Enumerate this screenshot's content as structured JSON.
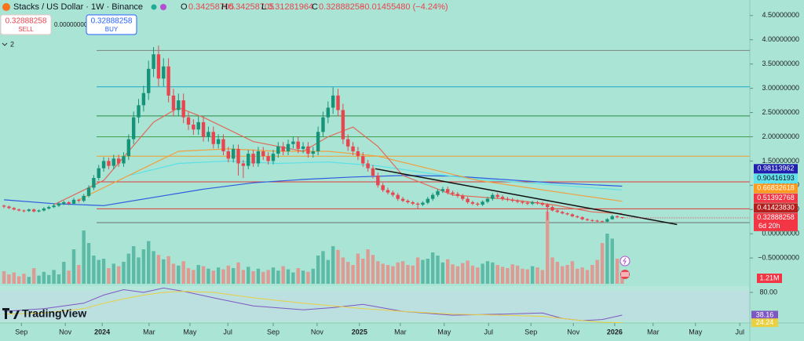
{
  "header": {
    "symbol": "Stacks / US Dollar · 1W · Binance",
    "ohlc_keys": [
      "O",
      "H",
      "L",
      "C"
    ],
    "change": "−0.01455480 (−4.24%)",
    "sell_price": "0.32888258",
    "sell_label": "SELL",
    "spread": "0.00000000",
    "buy_price": "0.32888258",
    "buy_label": "BUY",
    "indicator_count": "2",
    "logo": "TradingView"
  },
  "chart_data": {
    "type": "candlestick",
    "candles": [
      [
        0.58,
        0.6,
        0.53,
        0.56
      ],
      [
        0.56,
        0.58,
        0.51,
        0.53
      ],
      [
        0.53,
        0.55,
        0.48,
        0.5
      ],
      [
        0.5,
        0.52,
        0.46,
        0.48
      ],
      [
        0.48,
        0.5,
        0.44,
        0.47
      ],
      [
        0.47,
        0.52,
        0.45,
        0.5
      ],
      [
        0.5,
        0.52,
        0.44,
        0.46
      ],
      [
        0.46,
        0.5,
        0.44,
        0.48
      ],
      [
        0.48,
        0.55,
        0.46,
        0.52
      ],
      [
        0.52,
        0.58,
        0.5,
        0.55
      ],
      [
        0.55,
        0.61,
        0.53,
        0.58
      ],
      [
        0.58,
        0.65,
        0.55,
        0.62
      ],
      [
        0.62,
        0.68,
        0.59,
        0.65
      ],
      [
        0.65,
        0.67,
        0.59,
        0.62
      ],
      [
        0.62,
        0.74,
        0.6,
        0.7
      ],
      [
        0.7,
        0.72,
        0.64,
        0.68
      ],
      [
        0.68,
        0.82,
        0.65,
        0.78
      ],
      [
        0.78,
        1.0,
        0.75,
        0.95
      ],
      [
        0.95,
        1.21,
        0.9,
        1.15
      ],
      [
        1.15,
        1.42,
        1.1,
        1.35
      ],
      [
        1.35,
        1.58,
        1.28,
        1.5
      ],
      [
        1.5,
        1.57,
        1.33,
        1.4
      ],
      [
        1.4,
        1.63,
        1.33,
        1.55
      ],
      [
        1.55,
        1.63,
        1.38,
        1.45
      ],
      [
        1.45,
        1.68,
        1.38,
        1.6
      ],
      [
        1.6,
        2.05,
        1.52,
        1.95
      ],
      [
        1.95,
        2.52,
        1.85,
        2.4
      ],
      [
        2.4,
        2.78,
        2.28,
        2.65
      ],
      [
        2.65,
        3.05,
        2.52,
        2.9
      ],
      [
        2.9,
        3.57,
        2.76,
        3.4
      ],
      [
        3.4,
        3.85,
        3.23,
        3.7
      ],
      [
        3.7,
        3.88,
        3.04,
        3.2
      ],
      [
        3.2,
        3.62,
        3.04,
        3.45
      ],
      [
        3.45,
        3.62,
        2.71,
        2.85
      ],
      [
        2.85,
        2.99,
        2.42,
        2.55
      ],
      [
        2.55,
        2.89,
        2.42,
        2.75
      ],
      [
        2.75,
        2.89,
        2.28,
        2.4
      ],
      [
        2.4,
        2.52,
        2.14,
        2.25
      ],
      [
        2.25,
        2.36,
        2.04,
        2.15
      ],
      [
        2.15,
        2.42,
        2.04,
        2.3
      ],
      [
        2.3,
        2.42,
        1.9,
        2.0
      ],
      [
        2.0,
        2.21,
        1.9,
        2.1
      ],
      [
        2.1,
        2.21,
        1.76,
        1.85
      ],
      [
        1.85,
        2.05,
        1.76,
        1.95
      ],
      [
        1.95,
        2.05,
        1.62,
        1.7
      ],
      [
        1.7,
        1.79,
        1.47,
        1.55
      ],
      [
        1.55,
        1.84,
        1.47,
        1.75
      ],
      [
        1.75,
        1.84,
        1.2,
        1.45
      ],
      [
        1.45,
        1.52,
        1.15,
        1.4
      ],
      [
        1.4,
        1.73,
        1.33,
        1.65
      ],
      [
        1.65,
        1.73,
        1.38,
        1.45
      ],
      [
        1.45,
        1.79,
        1.38,
        1.7
      ],
      [
        1.7,
        1.79,
        1.52,
        1.6
      ],
      [
        1.6,
        1.68,
        1.43,
        1.5
      ],
      [
        1.5,
        1.73,
        1.43,
        1.65
      ],
      [
        1.65,
        1.89,
        1.57,
        1.8
      ],
      [
        1.8,
        1.89,
        1.62,
        1.7
      ],
      [
        1.7,
        1.94,
        1.62,
        1.85
      ],
      [
        1.85,
        2.0,
        1.76,
        1.9
      ],
      [
        1.9,
        2.0,
        1.66,
        1.75
      ],
      [
        1.75,
        1.89,
        1.66,
        1.8
      ],
      [
        1.8,
        1.89,
        1.57,
        1.65
      ],
      [
        1.65,
        1.79,
        1.57,
        1.7
      ],
      [
        1.7,
        2.21,
        1.62,
        2.1
      ],
      [
        2.1,
        2.52,
        2.0,
        2.4
      ],
      [
        2.4,
        2.73,
        2.28,
        2.6
      ],
      [
        2.6,
        3.02,
        2.47,
        2.85
      ],
      [
        2.85,
        2.99,
        2.42,
        2.55
      ],
      [
        2.55,
        2.68,
        1.85,
        1.95
      ],
      [
        1.95,
        2.05,
        1.71,
        1.8
      ],
      [
        1.8,
        1.89,
        1.62,
        1.7
      ],
      [
        1.7,
        1.79,
        1.52,
        1.6
      ],
      [
        1.6,
        1.68,
        1.38,
        1.45
      ],
      [
        1.45,
        1.52,
        1.28,
        1.35
      ],
      [
        1.35,
        1.42,
        1.14,
        1.2
      ],
      [
        1.2,
        1.26,
        0.95,
        1.0
      ],
      [
        1.0,
        1.05,
        0.86,
        0.9
      ],
      [
        0.9,
        0.95,
        0.81,
        0.85
      ],
      [
        0.85,
        0.89,
        0.76,
        0.8
      ],
      [
        0.8,
        0.84,
        0.68,
        0.72
      ],
      [
        0.72,
        0.76,
        0.65,
        0.68
      ],
      [
        0.68,
        0.71,
        0.62,
        0.65
      ],
      [
        0.65,
        0.68,
        0.59,
        0.62
      ],
      [
        0.62,
        0.65,
        0.52,
        0.6
      ],
      [
        0.6,
        0.67,
        0.57,
        0.64
      ],
      [
        0.64,
        0.76,
        0.61,
        0.72
      ],
      [
        0.72,
        0.84,
        0.68,
        0.8
      ],
      [
        0.8,
        0.92,
        0.76,
        0.88
      ],
      [
        0.88,
        0.97,
        0.84,
        0.92
      ],
      [
        0.92,
        0.97,
        0.81,
        0.85
      ],
      [
        0.85,
        0.89,
        0.78,
        0.82
      ],
      [
        0.82,
        0.86,
        0.74,
        0.78
      ],
      [
        0.78,
        0.82,
        0.68,
        0.72
      ],
      [
        0.72,
        0.76,
        0.62,
        0.65
      ],
      [
        0.65,
        0.68,
        0.59,
        0.62
      ],
      [
        0.62,
        0.65,
        0.57,
        0.6
      ],
      [
        0.6,
        0.69,
        0.57,
        0.66
      ],
      [
        0.66,
        0.76,
        0.63,
        0.72
      ],
      [
        0.72,
        0.84,
        0.68,
        0.8
      ],
      [
        0.8,
        0.84,
        0.72,
        0.76
      ],
      [
        0.76,
        0.8,
        0.68,
        0.72
      ],
      [
        0.72,
        0.76,
        0.67,
        0.7
      ],
      [
        0.7,
        0.74,
        0.65,
        0.68
      ],
      [
        0.68,
        0.71,
        0.63,
        0.66
      ],
      [
        0.66,
        0.69,
        0.61,
        0.64
      ],
      [
        0.64,
        0.67,
        0.59,
        0.62
      ],
      [
        0.62,
        0.68,
        0.59,
        0.65
      ],
      [
        0.65,
        0.68,
        0.6,
        0.63
      ],
      [
        0.63,
        0.66,
        0.57,
        0.6
      ],
      [
        0.6,
        0.63,
        0.28,
        0.55
      ],
      [
        0.55,
        0.58,
        0.46,
        0.48
      ],
      [
        0.48,
        0.5,
        0.43,
        0.45
      ],
      [
        0.45,
        0.47,
        0.4,
        0.42
      ],
      [
        0.42,
        0.44,
        0.38,
        0.4
      ],
      [
        0.4,
        0.42,
        0.34,
        0.36
      ],
      [
        0.36,
        0.38,
        0.32,
        0.34
      ],
      [
        0.34,
        0.36,
        0.28,
        0.3
      ],
      [
        0.3,
        0.32,
        0.26,
        0.28
      ],
      [
        0.28,
        0.3,
        0.25,
        0.27
      ],
      [
        0.27,
        0.29,
        0.24,
        0.26
      ],
      [
        0.26,
        0.27,
        0.23,
        0.25
      ],
      [
        0.25,
        0.32,
        0.24,
        0.3
      ],
      [
        0.3,
        0.39,
        0.29,
        0.36
      ],
      [
        0.36,
        0.38,
        0.32,
        0.34
      ],
      [
        0.34258705,
        0.34258705,
        0.31281964,
        0.32888258
      ]
    ],
    "xlim": [
      -0.8,
      149.6
    ],
    "xticks": [
      {
        "value": 3.5,
        "label": "Sep"
      },
      {
        "value": 12.3,
        "label": "Nov"
      },
      {
        "value": 19.7,
        "label": "2024"
      },
      {
        "value": 29.1,
        "label": "Mar"
      },
      {
        "value": 37.3,
        "label": "May"
      },
      {
        "value": 44.9,
        "label": "Jul"
      },
      {
        "value": 54,
        "label": "Sep"
      },
      {
        "value": 62.8,
        "label": "Nov"
      },
      {
        "value": 71.3,
        "label": "2025"
      },
      {
        "value": 79.5,
        "label": "Mar"
      },
      {
        "value": 88.3,
        "label": "May"
      },
      {
        "value": 97.2,
        "label": "Jul"
      },
      {
        "value": 105.7,
        "label": "Sep"
      },
      {
        "value": 114.2,
        "label": "Nov"
      },
      {
        "value": 122.5,
        "label": "2026"
      },
      {
        "value": 130.2,
        "label": "Mar"
      },
      {
        "value": 138.7,
        "label": "May"
      },
      {
        "value": 147.6,
        "label": "Jul"
      }
    ],
    "ylim": [
      -1.08,
      4.82
    ],
    "yticks": [
      {
        "value": 4.5,
        "label": "4.50000000"
      },
      {
        "value": 4,
        "label": "4.00000000"
      },
      {
        "value": 3.5,
        "label": "3.50000000"
      },
      {
        "value": 3,
        "label": "3.00000000"
      },
      {
        "value": 2.5,
        "label": "2.50000000"
      },
      {
        "value": 2,
        "label": "2.00000000"
      },
      {
        "value": 1.5,
        "label": "1.50000000"
      },
      {
        "value": 1,
        "label": "1.00000000"
      },
      {
        "value": 0.5,
        "label": "0.50000000"
      },
      {
        "value": 0,
        "label": "0.00000000"
      },
      {
        "value": -0.5,
        "label": "−0.50000000"
      }
    ],
    "up_color": "#16947a",
    "down_color": "#e8454f",
    "levels": [
      {
        "value": 3.78,
        "color": "#7d8580"
      },
      {
        "value": 3.03,
        "color": "#1ea8c8"
      },
      {
        "value": 2.43,
        "color": "#2e8b47"
      },
      {
        "value": 2.0,
        "color": "#3aa04a"
      },
      {
        "value": 1.6,
        "color": "#f0a030"
      },
      {
        "value": 1.07,
        "color": "#e03a3a"
      },
      {
        "value": 0.51392768,
        "color": "#e03a3a"
      },
      {
        "value": 0.23,
        "color": "#6d7570"
      }
    ],
    "moving_averages": [
      {
        "color": "#2f5be0",
        "x": [
          0,
          10,
          20,
          30,
          40,
          50,
          60,
          70,
          80,
          90,
          100,
          110,
          124
        ],
        "values": [
          0.7,
          0.62,
          0.58,
          0.75,
          0.92,
          1.05,
          1.12,
          1.17,
          1.2,
          1.19,
          1.12,
          1.05,
          0.98113962
        ]
      },
      {
        "color": "#5ee0e8",
        "x": [
          25,
          35,
          45,
          55,
          65,
          75,
          85,
          95,
          105,
          115,
          124
        ],
        "values": [
          1.2,
          1.45,
          1.5,
          1.45,
          1.48,
          1.4,
          1.25,
          1.12,
          1.05,
          0.97,
          0.90416193
        ]
      },
      {
        "color": "#f0a040",
        "x": [
          15,
          25,
          35,
          45,
          55,
          65,
          75,
          85,
          95,
          105,
          115,
          124
        ],
        "values": [
          0.7,
          1.2,
          1.7,
          1.75,
          1.7,
          1.7,
          1.6,
          1.35,
          1.1,
          0.95,
          0.8,
          0.66832618
        ]
      },
      {
        "color": "#e06a5a",
        "x": [
          10,
          20,
          30,
          35,
          40,
          50,
          60,
          65,
          70,
          75,
          80,
          90,
          100,
          110,
          118,
          124
        ],
        "values": [
          0.6,
          1.1,
          2.3,
          2.6,
          2.4,
          1.9,
          1.7,
          2.0,
          2.2,
          1.8,
          1.2,
          0.8,
          0.72,
          0.6,
          0.45,
          0.4142383
        ]
      }
    ],
    "trendline": {
      "color": "#111111",
      "x": [
        74.5,
        135
      ],
      "values": [
        1.34,
        0.19
      ]
    },
    "price_labels": [
      {
        "value": 0.98113962,
        "label": "0.98113962",
        "color": "#1f1fb0",
        "text_color": "#ffffff"
      },
      {
        "value": 0.90416193,
        "label": "0.90416193",
        "color": "#5fe3ee",
        "text_color": "#111111"
      },
      {
        "value": 0.66832618,
        "label": "0.66832618",
        "color": "#ff9a1f",
        "text_color": "#ffffff"
      },
      {
        "value": 0.51392768,
        "label": "0.51392768",
        "color": "#f23645",
        "text_color": "#ffffff"
      },
      {
        "value": 0.4142383,
        "label": "0.41423830",
        "color": "#b71c1c",
        "text_color": "#ffffff"
      }
    ],
    "last_price_color": "#f23645",
    "countdown": "6d 20h",
    "volume": {
      "values": [
        2.0,
        1.5,
        1.8,
        1.2,
        1.6,
        1.1,
        2.5,
        1.3,
        1.9,
        1.4,
        2.2,
        1.5,
        3.5,
        2.1,
        5.5,
        3.0,
        8.5,
        6.5,
        4.5,
        3.8,
        4.0,
        2.5,
        3.2,
        2.8,
        3.5,
        4.8,
        6.0,
        4.2,
        5.5,
        6.8,
        5.2,
        4.6,
        3.9,
        4.4,
        3.2,
        2.9,
        3.6,
        2.5,
        2.2,
        3.0,
        2.8,
        2.4,
        2.1,
        2.6,
        2.3,
        2.9,
        2.5,
        3.4,
        2.2,
        2.7,
        2.0,
        2.4,
        1.9,
        2.2,
        2.6,
        2.1,
        2.8,
        2.3,
        1.8,
        2.5,
        2.1,
        1.9,
        2.4,
        4.5,
        5.2,
        3.8,
        6.0,
        5.4,
        4.2,
        3.5,
        3.0,
        4.8,
        4.0,
        5.5,
        4.6,
        3.6,
        3.2,
        3.0,
        2.8,
        3.4,
        3.6,
        3.0,
        2.9,
        4.2,
        3.8,
        4.0,
        5.0,
        4.5,
        3.4,
        3.9,
        3.1,
        2.8,
        3.3,
        3.7,
        2.9,
        2.6,
        3.2,
        3.6,
        3.4,
        3.0,
        2.7,
        2.5,
        3.1,
        2.9,
        2.4,
        2.3,
        2.8,
        2.6,
        2.2,
        11.5,
        4.2,
        3.5,
        2.8,
        3.0,
        3.6,
        2.4,
        2.6,
        2.2,
        3.0,
        3.8,
        6.5,
        8.0,
        7.2,
        4.0,
        1.21
      ],
      "up_color": "#5cbaa6",
      "down_color": "#de9a93",
      "last_value_label": "1.21M",
      "label_color": "#f23645"
    },
    "oscillator": {
      "ylim": [
        23.7,
        91.5
      ],
      "yticks": [
        {
          "value": 80,
          "label": "80.00"
        }
      ],
      "series": [
        {
          "color": "#7e57c2",
          "x": [
            0,
            8,
            16,
            20,
            24,
            28,
            32,
            36,
            42,
            50,
            60,
            66,
            72,
            80,
            90,
            100,
            108,
            112,
            116,
            120,
            124
          ],
          "values": [
            45,
            50,
            60,
            75,
            85,
            80,
            88,
            82,
            70,
            55,
            48,
            52,
            58,
            45,
            38,
            40,
            42,
            32,
            28,
            30,
            38.16
          ]
        },
        {
          "color": "#e8d040",
          "x": [
            0,
            8,
            16,
            20,
            24,
            28,
            32,
            36,
            42,
            50,
            60,
            66,
            72,
            80,
            90,
            100,
            108,
            112,
            116,
            120,
            124
          ],
          "values": [
            40,
            42,
            50,
            60,
            68,
            75,
            80,
            82,
            80,
            70,
            60,
            55,
            50,
            45,
            40,
            38,
            36,
            32,
            28,
            25,
            24.24
          ]
        }
      ]
    }
  }
}
